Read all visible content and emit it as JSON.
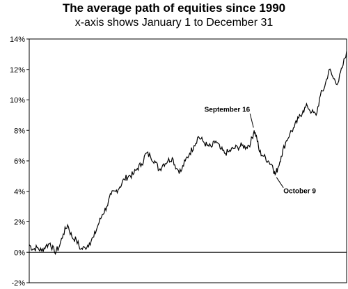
{
  "title": "The average path of equities since 1990",
  "subtitle": "x-axis shows January 1 to December 31",
  "chart_data": {
    "type": "line",
    "title": "The average path of equities since 1990",
    "subtitle": "x-axis shows January 1 to December 31",
    "xlabel": "",
    "ylabel": "",
    "xlim": [
      1,
      365
    ],
    "ylim": [
      -2,
      14
    ],
    "yticks": [
      -2,
      0,
      2,
      4,
      6,
      8,
      10,
      12,
      14
    ],
    "ytick_labels": [
      "-2%",
      "0%",
      "2%",
      "4%",
      "6%",
      "8%",
      "10%",
      "12%",
      "14%"
    ],
    "grid": false,
    "series": [
      {
        "x": [
          1,
          5,
          10,
          15,
          20,
          25,
          30,
          35,
          40,
          45,
          50,
          55,
          60,
          65,
          70,
          75,
          80,
          85,
          90,
          95,
          100,
          105,
          110,
          115,
          120,
          125,
          130,
          135,
          140,
          145,
          150,
          155,
          160,
          165,
          170,
          175,
          180,
          185,
          190,
          195,
          200,
          205,
          210,
          215,
          220,
          225,
          230,
          235,
          240,
          245,
          250,
          255,
          259,
          262,
          265,
          270,
          275,
          280,
          283,
          286,
          290,
          295,
          300,
          305,
          310,
          315,
          320,
          325,
          330,
          335,
          340,
          345,
          350,
          355,
          360,
          365
        ],
        "y": [
          0.5,
          0.2,
          0.3,
          0.1,
          0.4,
          0.6,
          0.0,
          0.3,
          1.2,
          1.8,
          1.0,
          0.8,
          0.2,
          0.3,
          0.6,
          1.0,
          1.8,
          2.5,
          3.0,
          3.8,
          4.0,
          4.3,
          4.8,
          5.0,
          5.1,
          5.5,
          5.8,
          6.5,
          6.3,
          6.0,
          5.4,
          5.8,
          6.0,
          6.2,
          5.5,
          5.3,
          6.0,
          6.5,
          7.0,
          7.6,
          7.3,
          7.0,
          6.9,
          7.3,
          6.8,
          6.5,
          6.6,
          6.8,
          6.9,
          7.0,
          6.9,
          7.2,
          8.0,
          7.5,
          6.6,
          6.3,
          6.0,
          5.7,
          5.1,
          5.5,
          6.3,
          7.2,
          7.8,
          8.2,
          8.8,
          9.3,
          9.6,
          9.2,
          9.0,
          10.3,
          10.9,
          12.0,
          11.4,
          11.1,
          12.1,
          13.2
        ]
      }
    ],
    "annotations": [
      {
        "text": "September 16",
        "x": 259,
        "y": 8.0
      },
      {
        "text": "October 9",
        "x": 283,
        "y": 5.1
      }
    ]
  }
}
